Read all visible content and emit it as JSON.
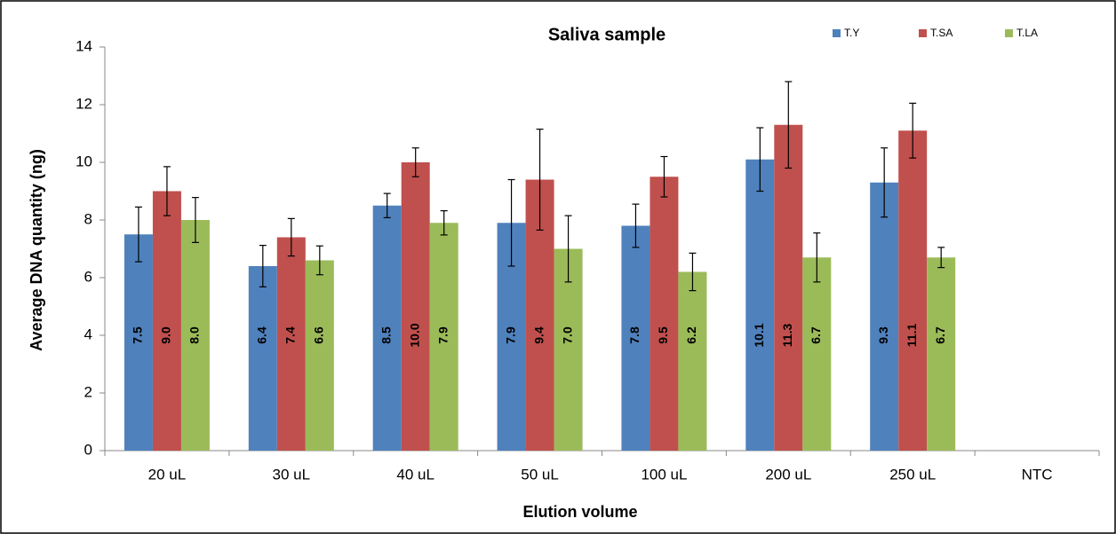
{
  "chart_data": {
    "type": "bar",
    "title": "Saliva sample",
    "x_label": "Elution volume",
    "y_label": "Average DNA quantity (ng)",
    "categories": [
      "20 uL",
      "30 uL",
      "40 uL",
      "50 uL",
      "100 uL",
      "200 uL",
      "250 uL",
      "NTC"
    ],
    "series": [
      {
        "name": "T.Y",
        "color": "#4f81bd",
        "values": [
          7.5,
          6.4,
          8.5,
          7.9,
          7.8,
          10.1,
          9.3,
          null
        ],
        "value_labels": [
          "7.5",
          "6.4",
          "8.5",
          "7.9",
          "7.8",
          "10.1",
          "9.3",
          null
        ],
        "errors": [
          0.95,
          0.72,
          0.42,
          1.5,
          0.75,
          1.1,
          1.2,
          null
        ]
      },
      {
        "name": "T.SA",
        "color": "#c0504d",
        "values": [
          9.0,
          7.4,
          10.0,
          9.4,
          9.5,
          11.3,
          11.1,
          null
        ],
        "value_labels": [
          "9.0",
          "7.4",
          "10.0",
          "9.4",
          "9.5",
          "11.3",
          "11.1",
          null
        ],
        "errors": [
          0.85,
          0.65,
          0.5,
          1.75,
          0.7,
          1.5,
          0.95,
          null
        ]
      },
      {
        "name": "T.LA",
        "color": "#9bbb59",
        "values": [
          8.0,
          6.6,
          7.9,
          7.0,
          6.2,
          6.7,
          6.7,
          null
        ],
        "value_labels": [
          "8.0",
          "6.6",
          "7.9",
          "7.0",
          "6.2",
          "6.7",
          "6.7",
          null
        ],
        "errors": [
          0.78,
          0.5,
          0.42,
          1.15,
          0.65,
          0.85,
          0.35,
          null
        ]
      }
    ],
    "ylim": [
      0,
      14
    ],
    "yticks": [
      0,
      2,
      4,
      6,
      8,
      10,
      12,
      14
    ],
    "grid": false
  }
}
